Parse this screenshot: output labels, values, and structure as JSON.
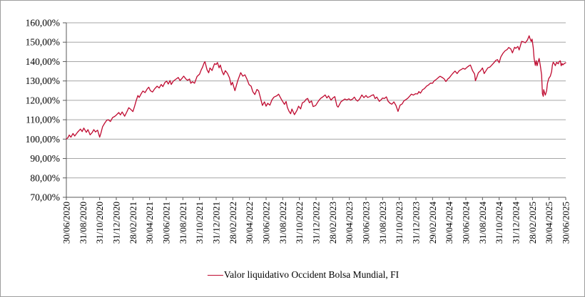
{
  "window": {
    "background_color": "#ffffff",
    "border_color": "#9e9e9e"
  },
  "chart_data": {
    "type": "line",
    "title": "",
    "grid": true,
    "legend_position": "bottom-center",
    "legend": [
      {
        "label": "Valor liquidativo Occident Bolsa Mundial, FI",
        "color": "#bf0a30"
      }
    ],
    "colors": {
      "gridline": "#a6a6a6",
      "axis": "#595959",
      "text": "#000000"
    },
    "y_axis": {
      "min": 70,
      "max": 160,
      "tick_step": 10,
      "tick_labels": [
        "160,00%",
        "150,00%",
        "140,00%",
        "130,00%",
        "120,00%",
        "110,00%",
        "100,00%",
        "90,00%",
        "80,00%",
        "70,00%"
      ]
    },
    "x_axis": {
      "months_per_tick": 2,
      "tick_labels": [
        "30/06/2020",
        "31/08/2020",
        "31/10/2020",
        "31/12/2020",
        "28/02/2021",
        "30/04/2021",
        "30/06/2021",
        "31/08/2021",
        "31/10/2021",
        "31/12/2021",
        "28/02/2022",
        "30/04/2022",
        "30/06/2022",
        "31/08/2022",
        "31/10/2022",
        "31/12/2022",
        "28/02/2023",
        "30/04/2023",
        "30/06/2023",
        "31/08/2023",
        "31/10/2023",
        "31/12/2023",
        "29/02/2024",
        "30/04/2024",
        "30/06/2024",
        "31/08/2024",
        "31/10/2024",
        "31/12/2024",
        "28/02/2025",
        "30/04/2025",
        "30/06/2025"
      ]
    },
    "series": [
      {
        "name": "Valor liquidativo Occident Bolsa Mundial, FI",
        "color": "#bf0a30",
        "x_unit": "months_since_30/06/2020",
        "points": [
          [
            0,
            100.0
          ],
          [
            0.2,
            100.8
          ],
          [
            0.35,
            102.1
          ],
          [
            0.55,
            101.0
          ],
          [
            0.8,
            102.9
          ],
          [
            1.0,
            101.6
          ],
          [
            1.35,
            103.6
          ],
          [
            1.7,
            105.2
          ],
          [
            1.9,
            103.9
          ],
          [
            2.1,
            105.7
          ],
          [
            2.4,
            103.5
          ],
          [
            2.6,
            104.9
          ],
          [
            2.85,
            102.2
          ],
          [
            3.1,
            103.4
          ],
          [
            3.3,
            104.9
          ],
          [
            3.5,
            103.7
          ],
          [
            3.75,
            104.6
          ],
          [
            4.0,
            101.0
          ],
          [
            4.15,
            103.0
          ],
          [
            4.35,
            106.4
          ],
          [
            4.6,
            108.2
          ],
          [
            4.85,
            109.7
          ],
          [
            5.05,
            110.0
          ],
          [
            5.3,
            109.1
          ],
          [
            5.55,
            111.1
          ],
          [
            5.8,
            111.7
          ],
          [
            6.0,
            112.4
          ],
          [
            6.3,
            113.7
          ],
          [
            6.5,
            112.5
          ],
          [
            6.7,
            114.0
          ],
          [
            7.0,
            111.8
          ],
          [
            7.25,
            113.9
          ],
          [
            7.5,
            116.2
          ],
          [
            7.7,
            115.5
          ],
          [
            8.0,
            114.2
          ],
          [
            8.2,
            117.0
          ],
          [
            8.4,
            120.0
          ],
          [
            8.6,
            122.5
          ],
          [
            8.75,
            121.5
          ],
          [
            9.0,
            123.5
          ],
          [
            9.2,
            124.8
          ],
          [
            9.45,
            124.0
          ],
          [
            9.7,
            125.8
          ],
          [
            9.9,
            126.8
          ],
          [
            10.1,
            125.0
          ],
          [
            10.35,
            124.3
          ],
          [
            10.6,
            125.9
          ],
          [
            10.9,
            127.3
          ],
          [
            11.15,
            126.4
          ],
          [
            11.4,
            128.2
          ],
          [
            11.6,
            127.1
          ],
          [
            11.85,
            129.3
          ],
          [
            12.05,
            129.9
          ],
          [
            12.25,
            128.4
          ],
          [
            12.45,
            130.2
          ],
          [
            12.6,
            128.2
          ],
          [
            12.85,
            129.9
          ],
          [
            13.2,
            131.0
          ],
          [
            13.45,
            131.8
          ],
          [
            13.65,
            130.2
          ],
          [
            13.9,
            131.4
          ],
          [
            14.1,
            132.5
          ],
          [
            14.35,
            131.1
          ],
          [
            14.55,
            130.3
          ],
          [
            14.8,
            131.0
          ],
          [
            14.95,
            128.8
          ],
          [
            15.15,
            129.6
          ],
          [
            15.4,
            128.8
          ],
          [
            15.7,
            132.3
          ],
          [
            16.0,
            133.5
          ],
          [
            16.2,
            135.7
          ],
          [
            16.35,
            137.0
          ],
          [
            16.55,
            139.3
          ],
          [
            16.65,
            139.9
          ],
          [
            16.9,
            135.8
          ],
          [
            17.1,
            134.2
          ],
          [
            17.25,
            136.7
          ],
          [
            17.5,
            135.4
          ],
          [
            17.8,
            138.9
          ],
          [
            18.0,
            138.5
          ],
          [
            18.15,
            139.5
          ],
          [
            18.35,
            136.8
          ],
          [
            18.5,
            138.2
          ],
          [
            18.7,
            135.1
          ],
          [
            18.9,
            133.2
          ],
          [
            19.1,
            135.3
          ],
          [
            19.35,
            133.9
          ],
          [
            19.6,
            131.6
          ],
          [
            19.8,
            127.9
          ],
          [
            19.95,
            129.3
          ],
          [
            20.25,
            125.0
          ],
          [
            20.6,
            130.2
          ],
          [
            20.95,
            134.3
          ],
          [
            21.2,
            132.5
          ],
          [
            21.45,
            133.2
          ],
          [
            21.7,
            130.9
          ],
          [
            21.95,
            128.1
          ],
          [
            22.2,
            127.3
          ],
          [
            22.4,
            124.5
          ],
          [
            22.65,
            123.0
          ],
          [
            22.9,
            125.6
          ],
          [
            23.1,
            124.9
          ],
          [
            23.3,
            121.7
          ],
          [
            23.55,
            117.4
          ],
          [
            23.8,
            119.2
          ],
          [
            24.0,
            117.0
          ],
          [
            24.2,
            118.5
          ],
          [
            24.45,
            117.5
          ],
          [
            24.7,
            120.3
          ],
          [
            24.95,
            121.7
          ],
          [
            25.3,
            122.4
          ],
          [
            25.5,
            123.2
          ],
          [
            25.85,
            120.4
          ],
          [
            26.2,
            117.9
          ],
          [
            26.4,
            119.4
          ],
          [
            26.55,
            116.4
          ],
          [
            26.75,
            114.4
          ],
          [
            26.95,
            113.1
          ],
          [
            27.1,
            115.5
          ],
          [
            27.4,
            112.6
          ],
          [
            27.7,
            114.8
          ],
          [
            27.9,
            117.0
          ],
          [
            28.15,
            115.6
          ],
          [
            28.35,
            118.7
          ],
          [
            28.6,
            119.3
          ],
          [
            28.8,
            120.5
          ],
          [
            29.0,
            121.0
          ],
          [
            29.2,
            118.8
          ],
          [
            29.45,
            119.7
          ],
          [
            29.65,
            116.8
          ],
          [
            29.95,
            117.3
          ],
          [
            30.3,
            119.7
          ],
          [
            30.55,
            121.0
          ],
          [
            30.85,
            121.9
          ],
          [
            31.1,
            122.8
          ],
          [
            31.3,
            121.2
          ],
          [
            31.5,
            122.3
          ],
          [
            31.8,
            120.1
          ],
          [
            32.05,
            121.3
          ],
          [
            32.25,
            121.9
          ],
          [
            32.5,
            117.2
          ],
          [
            32.65,
            116.5
          ],
          [
            33.0,
            119.3
          ],
          [
            33.2,
            119.9
          ],
          [
            33.45,
            120.7
          ],
          [
            33.7,
            120.2
          ],
          [
            33.95,
            120.8
          ],
          [
            34.15,
            120.1
          ],
          [
            34.4,
            120.7
          ],
          [
            34.6,
            121.7
          ],
          [
            34.8,
            120.3
          ],
          [
            35.0,
            119.6
          ],
          [
            35.25,
            120.8
          ],
          [
            35.5,
            122.8
          ],
          [
            35.75,
            121.4
          ],
          [
            36.0,
            122.5
          ],
          [
            36.2,
            121.5
          ],
          [
            36.45,
            121.9
          ],
          [
            36.65,
            122.5
          ],
          [
            36.9,
            122.9
          ],
          [
            37.1,
            120.9
          ],
          [
            37.3,
            121.7
          ],
          [
            37.6,
            119.5
          ],
          [
            37.8,
            120.2
          ],
          [
            38.0,
            121.2
          ],
          [
            38.2,
            120.9
          ],
          [
            38.45,
            121.8
          ],
          [
            38.65,
            119.6
          ],
          [
            38.9,
            118.5
          ],
          [
            39.1,
            118.0
          ],
          [
            39.35,
            119.2
          ],
          [
            39.6,
            117.4
          ],
          [
            39.85,
            114.3
          ],
          [
            40.1,
            117.5
          ],
          [
            40.35,
            118.2
          ],
          [
            40.55,
            119.7
          ],
          [
            40.8,
            120.4
          ],
          [
            41.0,
            121.0
          ],
          [
            41.25,
            122.2
          ],
          [
            41.45,
            123.2
          ],
          [
            41.7,
            122.7
          ],
          [
            41.95,
            123.4
          ],
          [
            42.2,
            123.3
          ],
          [
            42.35,
            124.5
          ],
          [
            42.55,
            123.7
          ],
          [
            42.8,
            125.5
          ],
          [
            43.0,
            126.0
          ],
          [
            43.3,
            127.4
          ],
          [
            43.5,
            127.9
          ],
          [
            43.75,
            128.9
          ],
          [
            44.0,
            128.8
          ],
          [
            44.2,
            130.1
          ],
          [
            44.45,
            130.8
          ],
          [
            44.7,
            131.8
          ],
          [
            44.9,
            132.4
          ],
          [
            45.2,
            131.7
          ],
          [
            45.4,
            131.0
          ],
          [
            45.6,
            129.7
          ],
          [
            45.85,
            131.1
          ],
          [
            46.0,
            131.6
          ],
          [
            46.25,
            133.0
          ],
          [
            46.5,
            134.2
          ],
          [
            46.7,
            135.1
          ],
          [
            46.95,
            133.8
          ],
          [
            47.2,
            135.3
          ],
          [
            47.45,
            135.9
          ],
          [
            47.65,
            136.5
          ],
          [
            47.9,
            136.1
          ],
          [
            48.15,
            137.1
          ],
          [
            48.4,
            137.9
          ],
          [
            48.55,
            138.2
          ],
          [
            48.8,
            135.4
          ],
          [
            49.05,
            133.5
          ],
          [
            49.15,
            130.1
          ],
          [
            49.3,
            131.8
          ],
          [
            49.5,
            134.2
          ],
          [
            49.75,
            135.2
          ],
          [
            50.0,
            136.7
          ],
          [
            50.2,
            133.8
          ],
          [
            50.45,
            135.5
          ],
          [
            50.65,
            136.8
          ],
          [
            50.9,
            137.2
          ],
          [
            51.1,
            138.1
          ],
          [
            51.35,
            139.3
          ],
          [
            51.6,
            140.6
          ],
          [
            51.8,
            141.0
          ],
          [
            52.0,
            139.4
          ],
          [
            52.2,
            142.4
          ],
          [
            52.45,
            144.2
          ],
          [
            52.7,
            145.5
          ],
          [
            52.95,
            146.2
          ],
          [
            53.15,
            147.3
          ],
          [
            53.4,
            146.5
          ],
          [
            53.6,
            144.5
          ],
          [
            53.85,
            147.4
          ],
          [
            54.0,
            146.8
          ],
          [
            54.25,
            147.8
          ],
          [
            54.4,
            146.0
          ],
          [
            54.7,
            150.4
          ],
          [
            54.95,
            150.1
          ],
          [
            55.15,
            149.7
          ],
          [
            55.4,
            151.1
          ],
          [
            55.6,
            153.3
          ],
          [
            55.7,
            152.0
          ],
          [
            55.85,
            150.4
          ],
          [
            55.95,
            151.6
          ],
          [
            56.1,
            147.0
          ],
          [
            56.2,
            141.5
          ],
          [
            56.35,
            138.0
          ],
          [
            56.45,
            140.5
          ],
          [
            56.55,
            137.8
          ],
          [
            56.65,
            139.4
          ],
          [
            56.8,
            141.6
          ],
          [
            56.95,
            137.9
          ],
          [
            57.1,
            133.0
          ],
          [
            57.2,
            123.5
          ],
          [
            57.3,
            122.1
          ],
          [
            57.35,
            125.5
          ],
          [
            57.45,
            124.0
          ],
          [
            57.55,
            122.7
          ],
          [
            57.7,
            124.9
          ],
          [
            57.8,
            128.6
          ],
          [
            57.95,
            131.2
          ],
          [
            58.15,
            132.5
          ],
          [
            58.3,
            134.8
          ],
          [
            58.4,
            138.2
          ],
          [
            58.5,
            139.7
          ],
          [
            58.65,
            138.7
          ],
          [
            58.75,
            137.9
          ],
          [
            58.9,
            139.6
          ],
          [
            59.1,
            138.8
          ],
          [
            59.2,
            140.0
          ],
          [
            59.35,
            140.4
          ],
          [
            59.45,
            137.8
          ],
          [
            59.55,
            139.0
          ],
          [
            59.65,
            138.3
          ],
          [
            59.8,
            138.9
          ],
          [
            60.0,
            139.4
          ]
        ]
      }
    ]
  }
}
